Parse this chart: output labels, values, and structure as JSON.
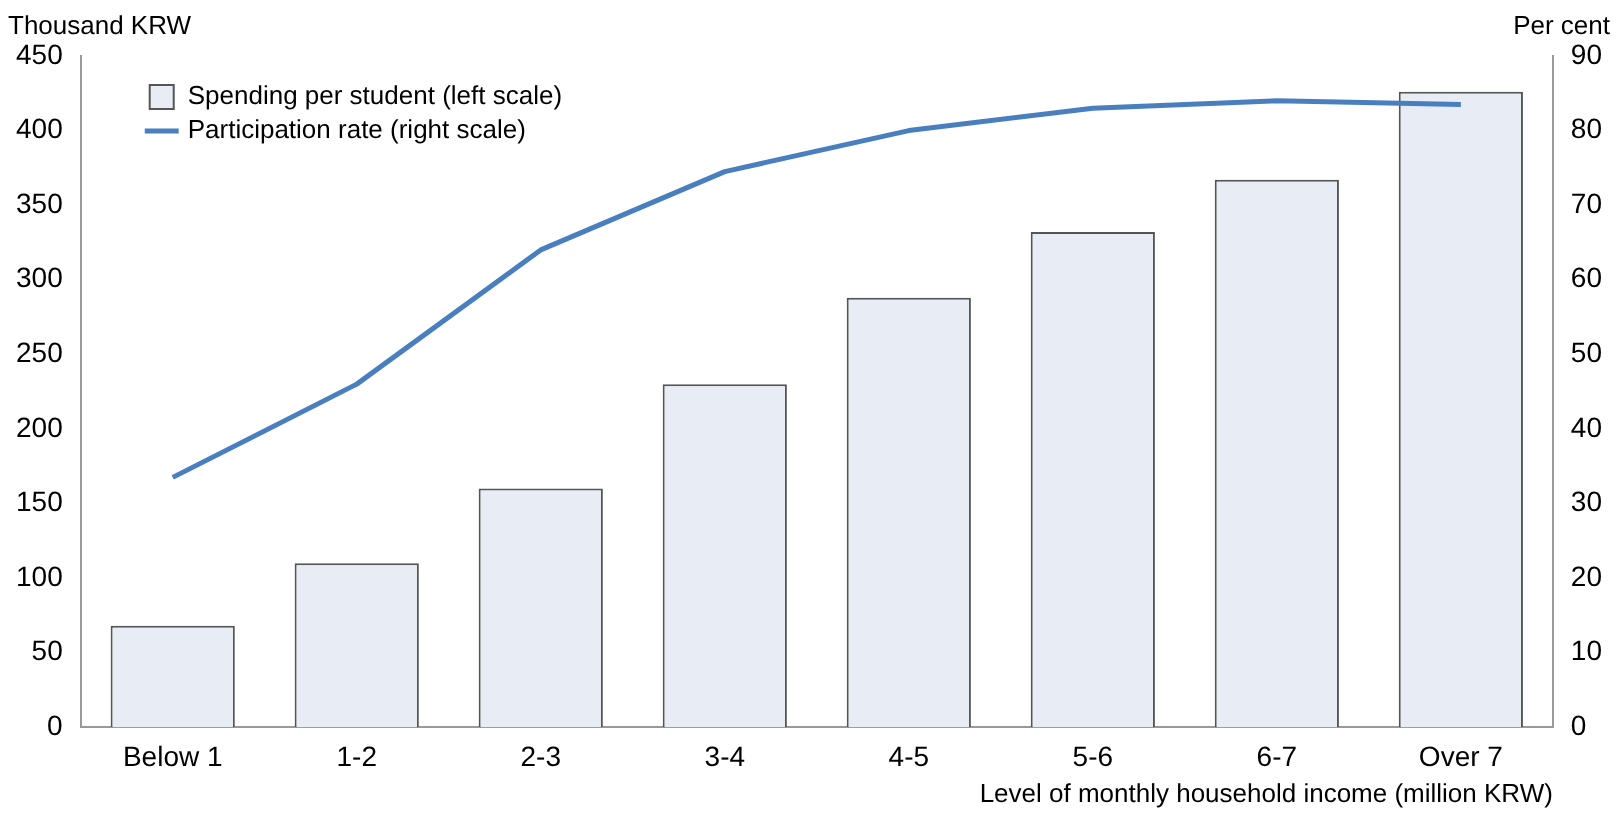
{
  "chart_data": {
    "type": "bar",
    "xlabel": "Level of monthly household income (million KRW)",
    "ylabel": "Thousand KRW",
    "y2label": "Per cent",
    "categories": [
      "Below 1",
      "1-2",
      "2-3",
      "3-4",
      "4-5",
      "5-6",
      "6-7",
      "Over 7"
    ],
    "series": [
      {
        "name": "Spending per student (left scale)",
        "color": "#e8ecf5",
        "values": [
          68,
          110,
          160,
          230,
          288,
          332,
          367,
          426
        ]
      },
      {
        "name": "Participation rate (right scale)",
        "type": "line",
        "axis": "y2",
        "color": "#4a7fbf",
        "values": [
          33.5,
          46,
          64,
          74.5,
          80,
          83,
          84,
          83.5
        ]
      }
    ],
    "ylim": [
      0,
      450
    ],
    "yticks": [
      0,
      50,
      100,
      150,
      200,
      250,
      300,
      350,
      400,
      450
    ],
    "y2lim": [
      0,
      90
    ],
    "y2ticks": [
      0,
      10,
      20,
      30,
      40,
      50,
      60,
      70,
      80,
      90
    ],
    "grid": false,
    "legend": "top left",
    "marker": "none",
    "line_style": "solid"
  }
}
